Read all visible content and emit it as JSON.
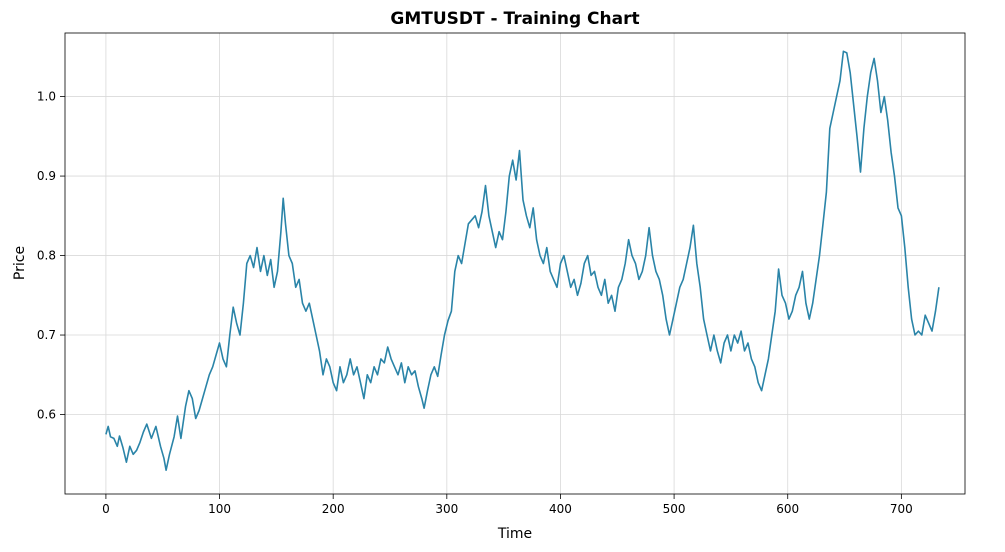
{
  "chart_data": {
    "type": "line",
    "title": "GMTUSDT - Training Chart",
    "xlabel": "Time",
    "ylabel": "Price",
    "xlim": [
      -36,
      756
    ],
    "ylim": [
      0.5,
      1.08
    ],
    "xticks": [
      0,
      100,
      200,
      300,
      400,
      500,
      600,
      700
    ],
    "yticks": [
      0.6,
      0.7,
      0.8,
      0.9,
      1.0
    ],
    "ytick_labels": [
      "0.6",
      "0.7",
      "0.8",
      "0.9",
      "1.0"
    ],
    "grid": true,
    "series": [
      {
        "color": "#2a84a8",
        "points": [
          [
            0,
            0.575
          ],
          [
            2,
            0.585
          ],
          [
            4,
            0.572
          ],
          [
            7,
            0.57
          ],
          [
            10,
            0.56
          ],
          [
            12,
            0.573
          ],
          [
            15,
            0.558
          ],
          [
            18,
            0.54
          ],
          [
            21,
            0.56
          ],
          [
            24,
            0.55
          ],
          [
            27,
            0.555
          ],
          [
            30,
            0.565
          ],
          [
            33,
            0.578
          ],
          [
            36,
            0.588
          ],
          [
            40,
            0.57
          ],
          [
            44,
            0.585
          ],
          [
            48,
            0.56
          ],
          [
            51,
            0.545
          ],
          [
            53,
            0.53
          ],
          [
            56,
            0.55
          ],
          [
            60,
            0.572
          ],
          [
            63,
            0.598
          ],
          [
            66,
            0.57
          ],
          [
            70,
            0.61
          ],
          [
            73,
            0.63
          ],
          [
            76,
            0.62
          ],
          [
            79,
            0.595
          ],
          [
            82,
            0.605
          ],
          [
            85,
            0.62
          ],
          [
            88,
            0.635
          ],
          [
            91,
            0.65
          ],
          [
            94,
            0.66
          ],
          [
            97,
            0.675
          ],
          [
            100,
            0.69
          ],
          [
            103,
            0.67
          ],
          [
            106,
            0.66
          ],
          [
            109,
            0.7
          ],
          [
            112,
            0.735
          ],
          [
            115,
            0.715
          ],
          [
            118,
            0.7
          ],
          [
            121,
            0.74
          ],
          [
            124,
            0.79
          ],
          [
            127,
            0.8
          ],
          [
            130,
            0.785
          ],
          [
            133,
            0.81
          ],
          [
            136,
            0.78
          ],
          [
            139,
            0.8
          ],
          [
            142,
            0.775
          ],
          [
            145,
            0.795
          ],
          [
            148,
            0.76
          ],
          [
            151,
            0.78
          ],
          [
            154,
            0.83
          ],
          [
            156,
            0.872
          ],
          [
            158,
            0.84
          ],
          [
            161,
            0.8
          ],
          [
            164,
            0.79
          ],
          [
            167,
            0.76
          ],
          [
            170,
            0.77
          ],
          [
            173,
            0.74
          ],
          [
            176,
            0.73
          ],
          [
            179,
            0.74
          ],
          [
            182,
            0.72
          ],
          [
            185,
            0.7
          ],
          [
            188,
            0.68
          ],
          [
            191,
            0.65
          ],
          [
            194,
            0.67
          ],
          [
            197,
            0.66
          ],
          [
            200,
            0.64
          ],
          [
            203,
            0.63
          ],
          [
            206,
            0.66
          ],
          [
            209,
            0.64
          ],
          [
            212,
            0.65
          ],
          [
            215,
            0.67
          ],
          [
            218,
            0.65
          ],
          [
            221,
            0.66
          ],
          [
            224,
            0.64
          ],
          [
            227,
            0.62
          ],
          [
            230,
            0.65
          ],
          [
            233,
            0.64
          ],
          [
            236,
            0.66
          ],
          [
            239,
            0.65
          ],
          [
            242,
            0.67
          ],
          [
            245,
            0.665
          ],
          [
            248,
            0.685
          ],
          [
            251,
            0.67
          ],
          [
            254,
            0.66
          ],
          [
            257,
            0.65
          ],
          [
            260,
            0.665
          ],
          [
            263,
            0.64
          ],
          [
            266,
            0.66
          ],
          [
            269,
            0.65
          ],
          [
            272,
            0.655
          ],
          [
            275,
            0.635
          ],
          [
            278,
            0.62
          ],
          [
            280,
            0.608
          ],
          [
            283,
            0.63
          ],
          [
            286,
            0.65
          ],
          [
            289,
            0.66
          ],
          [
            292,
            0.648
          ],
          [
            295,
            0.675
          ],
          [
            298,
            0.7
          ],
          [
            301,
            0.718
          ],
          [
            304,
            0.73
          ],
          [
            307,
            0.78
          ],
          [
            310,
            0.8
          ],
          [
            313,
            0.79
          ],
          [
            316,
            0.815
          ],
          [
            319,
            0.84
          ],
          [
            322,
            0.845
          ],
          [
            325,
            0.85
          ],
          [
            328,
            0.835
          ],
          [
            331,
            0.855
          ],
          [
            334,
            0.888
          ],
          [
            337,
            0.85
          ],
          [
            340,
            0.83
          ],
          [
            343,
            0.81
          ],
          [
            346,
            0.83
          ],
          [
            349,
            0.82
          ],
          [
            352,
            0.855
          ],
          [
            355,
            0.9
          ],
          [
            358,
            0.92
          ],
          [
            361,
            0.895
          ],
          [
            364,
            0.932
          ],
          [
            367,
            0.87
          ],
          [
            370,
            0.85
          ],
          [
            373,
            0.835
          ],
          [
            376,
            0.86
          ],
          [
            379,
            0.82
          ],
          [
            382,
            0.8
          ],
          [
            385,
            0.79
          ],
          [
            388,
            0.81
          ],
          [
            391,
            0.78
          ],
          [
            394,
            0.77
          ],
          [
            397,
            0.76
          ],
          [
            400,
            0.79
          ],
          [
            403,
            0.8
          ],
          [
            406,
            0.78
          ],
          [
            409,
            0.76
          ],
          [
            412,
            0.77
          ],
          [
            415,
            0.75
          ],
          [
            418,
            0.765
          ],
          [
            421,
            0.79
          ],
          [
            424,
            0.8
          ],
          [
            427,
            0.775
          ],
          [
            430,
            0.78
          ],
          [
            433,
            0.76
          ],
          [
            436,
            0.75
          ],
          [
            439,
            0.77
          ],
          [
            442,
            0.74
          ],
          [
            445,
            0.75
          ],
          [
            448,
            0.73
          ],
          [
            451,
            0.76
          ],
          [
            454,
            0.77
          ],
          [
            457,
            0.79
          ],
          [
            460,
            0.82
          ],
          [
            463,
            0.8
          ],
          [
            466,
            0.79
          ],
          [
            469,
            0.77
          ],
          [
            472,
            0.78
          ],
          [
            475,
            0.8
          ],
          [
            478,
            0.835
          ],
          [
            481,
            0.8
          ],
          [
            484,
            0.78
          ],
          [
            487,
            0.77
          ],
          [
            490,
            0.75
          ],
          [
            493,
            0.72
          ],
          [
            496,
            0.7
          ],
          [
            499,
            0.72
          ],
          [
            502,
            0.74
          ],
          [
            505,
            0.76
          ],
          [
            508,
            0.77
          ],
          [
            511,
            0.79
          ],
          [
            514,
            0.81
          ],
          [
            517,
            0.838
          ],
          [
            520,
            0.79
          ],
          [
            523,
            0.76
          ],
          [
            526,
            0.72
          ],
          [
            529,
            0.7
          ],
          [
            532,
            0.68
          ],
          [
            535,
            0.7
          ],
          [
            538,
            0.68
          ],
          [
            541,
            0.665
          ],
          [
            544,
            0.69
          ],
          [
            547,
            0.7
          ],
          [
            550,
            0.68
          ],
          [
            553,
            0.7
          ],
          [
            556,
            0.69
          ],
          [
            559,
            0.705
          ],
          [
            562,
            0.68
          ],
          [
            565,
            0.69
          ],
          [
            568,
            0.67
          ],
          [
            571,
            0.66
          ],
          [
            574,
            0.64
          ],
          [
            577,
            0.63
          ],
          [
            580,
            0.65
          ],
          [
            583,
            0.67
          ],
          [
            586,
            0.7
          ],
          [
            589,
            0.73
          ],
          [
            592,
            0.783
          ],
          [
            595,
            0.75
          ],
          [
            598,
            0.74
          ],
          [
            601,
            0.72
          ],
          [
            604,
            0.73
          ],
          [
            607,
            0.75
          ],
          [
            610,
            0.76
          ],
          [
            613,
            0.78
          ],
          [
            616,
            0.74
          ],
          [
            619,
            0.72
          ],
          [
            622,
            0.74
          ],
          [
            625,
            0.77
          ],
          [
            628,
            0.8
          ],
          [
            631,
            0.84
          ],
          [
            634,
            0.88
          ],
          [
            637,
            0.96
          ],
          [
            640,
            0.98
          ],
          [
            643,
            1.0
          ],
          [
            646,
            1.02
          ],
          [
            649,
            1.057
          ],
          [
            652,
            1.055
          ],
          [
            655,
            1.03
          ],
          [
            658,
            0.99
          ],
          [
            661,
            0.95
          ],
          [
            664,
            0.905
          ],
          [
            667,
            0.96
          ],
          [
            670,
            1.0
          ],
          [
            673,
            1.03
          ],
          [
            676,
            1.048
          ],
          [
            679,
            1.02
          ],
          [
            682,
            0.98
          ],
          [
            685,
            1.0
          ],
          [
            688,
            0.97
          ],
          [
            691,
            0.93
          ],
          [
            694,
            0.9
          ],
          [
            697,
            0.86
          ],
          [
            700,
            0.85
          ],
          [
            703,
            0.81
          ],
          [
            706,
            0.76
          ],
          [
            709,
            0.72
          ],
          [
            712,
            0.7
          ],
          [
            715,
            0.705
          ],
          [
            718,
            0.7
          ],
          [
            721,
            0.725
          ],
          [
            724,
            0.715
          ],
          [
            727,
            0.705
          ],
          [
            730,
            0.73
          ],
          [
            733,
            0.76
          ]
        ]
      }
    ]
  }
}
